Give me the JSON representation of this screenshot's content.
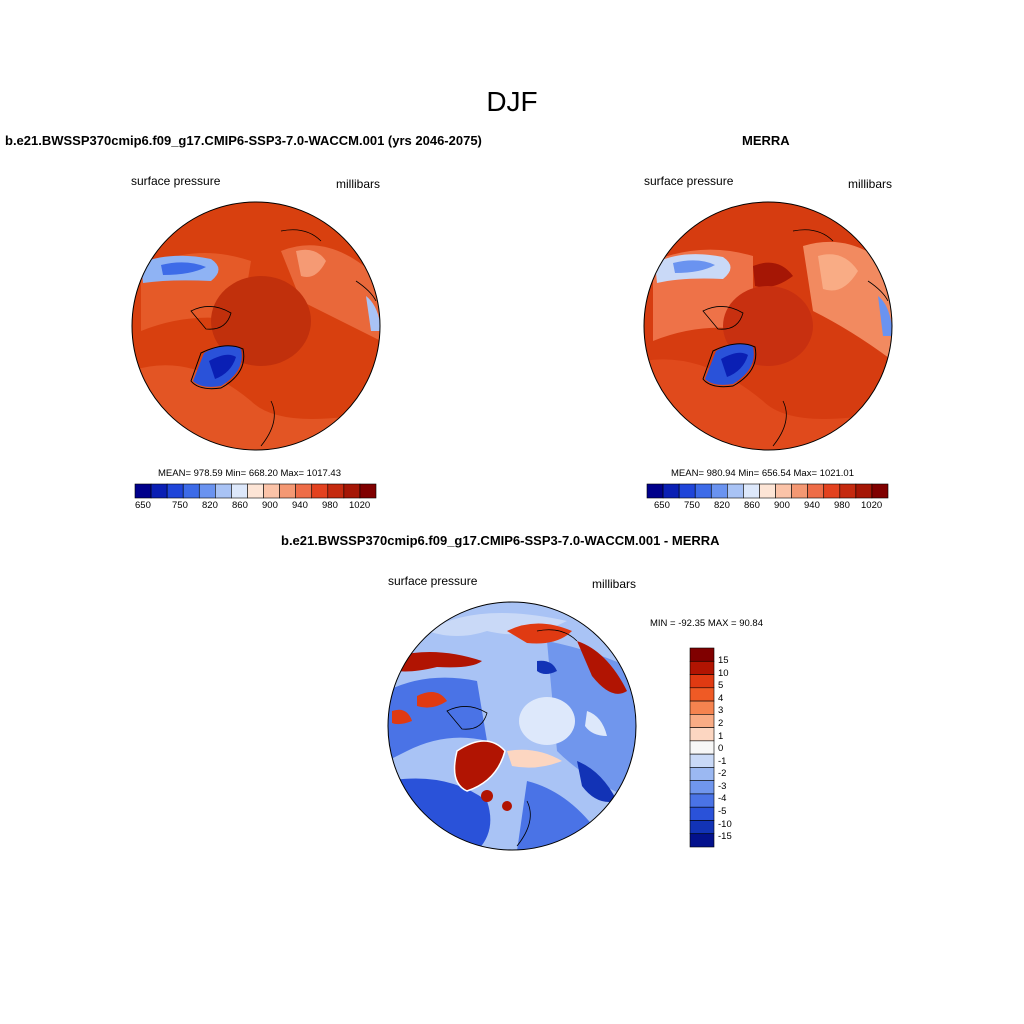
{
  "figure": {
    "title": "DJF"
  },
  "panels": [
    {
      "title": "b.e21.BWSSP370cmip6.f09_g17.CMIP6-SSP3-7.0-WACCM.001 (yrs 2046-2075)",
      "left_label": "surface pressure",
      "right_label": "millibars",
      "stats": "MEAN= 978.59  Min= 668.20  Max= 1017.43",
      "colorbar_ticks": [
        "650",
        "750",
        "820",
        "860",
        "900",
        "940",
        "980",
        "1020"
      ]
    },
    {
      "title": "MERRA",
      "left_label": "surface pressure",
      "right_label": "millibars",
      "stats": "MEAN= 980.94  Min= 656.54  Max= 1021.01",
      "colorbar_ticks": [
        "650",
        "750",
        "820",
        "860",
        "900",
        "940",
        "980",
        "1020"
      ]
    },
    {
      "title": "b.e21.BWSSP370cmip6.f09_g17.CMIP6-SSP3-7.0-WACCM.001 - MERRA",
      "left_label": "surface pressure",
      "right_label": "millibars",
      "stats": "MIN = -92.35 MAX =  90.84",
      "colorbar_ticks": [
        "15",
        "10",
        "5",
        "4",
        "3",
        "2",
        "1",
        "0",
        "-1",
        "-2",
        "-3",
        "-4",
        "-5",
        "-10",
        "-15"
      ]
    }
  ],
  "colors": {
    "abs_scale": [
      "#00008b",
      "#0a1fb4",
      "#1f45d9",
      "#3d6be8",
      "#6a93f0",
      "#a9c3f5",
      "#dde8fb",
      "#fde5d6",
      "#fbc3a8",
      "#f49873",
      "#ee6c47",
      "#e3421f",
      "#c52a0f",
      "#a51605",
      "#800000"
    ],
    "diff_scale": [
      "#800000",
      "#b11402",
      "#e03a12",
      "#ef5a25",
      "#f5834f",
      "#f9ac85",
      "#fcd6c1",
      "#f7f7f7",
      "#c9d9f7",
      "#9bb8f2",
      "#7096ed",
      "#4a73e6",
      "#2a52d9",
      "#1233b6",
      "#03118c"
    ]
  }
}
